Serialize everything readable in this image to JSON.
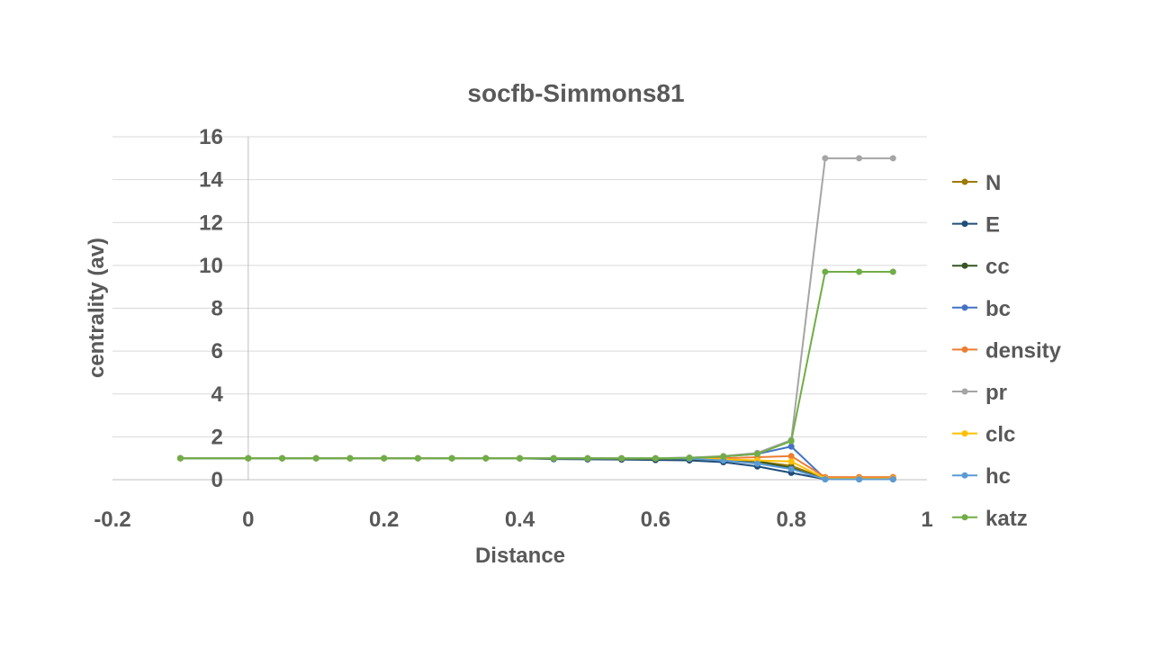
{
  "chart_data": {
    "type": "line",
    "title": "socfb-Simmons81",
    "xlabel": "Distance",
    "ylabel": "centrality (av)",
    "xlim": [
      -0.2,
      1
    ],
    "ylim": [
      0,
      16
    ],
    "xticks": [
      -0.2,
      0,
      0.2,
      0.4,
      0.6,
      0.8,
      1
    ],
    "xtick_labels": [
      "-0.2",
      "0",
      "0.2",
      "0.4",
      "0.6",
      "0.8",
      "1"
    ],
    "yticks": [
      0,
      2,
      4,
      6,
      8,
      10,
      12,
      14,
      16
    ],
    "ytick_labels": [
      "0",
      "2",
      "4",
      "6",
      "8",
      "10",
      "12",
      "14",
      "16"
    ],
    "grid": "horizontal",
    "legend_position": "right",
    "x": [
      -0.1,
      0,
      0.05,
      0.1,
      0.15,
      0.2,
      0.25,
      0.3,
      0.35,
      0.4,
      0.45,
      0.5,
      0.55,
      0.6,
      0.65,
      0.7,
      0.75,
      0.8,
      0.85,
      0.9,
      0.95
    ],
    "series": [
      {
        "name": "N",
        "color": "#9c7a00",
        "values": [
          1,
          1,
          1,
          1,
          1,
          1,
          1,
          1,
          1,
          1,
          0.98,
          0.97,
          0.97,
          0.96,
          0.95,
          0.92,
          0.85,
          0.65,
          0.05,
          0.05,
          0.05
        ]
      },
      {
        "name": "E",
        "color": "#1f4e79",
        "values": [
          1,
          1,
          1,
          1,
          1,
          1,
          1,
          1,
          1,
          0.99,
          0.96,
          0.95,
          0.94,
          0.92,
          0.9,
          0.82,
          0.62,
          0.32,
          0.02,
          0.02,
          0.02
        ]
      },
      {
        "name": "cc",
        "color": "#375623",
        "values": [
          1,
          1,
          1,
          1,
          1,
          1,
          1,
          1,
          1,
          1,
          0.99,
          0.99,
          0.98,
          0.97,
          0.96,
          0.93,
          0.85,
          0.55,
          0.03,
          0.03,
          0.03
        ]
      },
      {
        "name": "bc",
        "color": "#4472c4",
        "values": [
          1,
          1,
          1,
          1,
          1,
          1,
          1,
          1,
          1,
          1,
          1,
          1,
          1,
          1,
          1.02,
          1.08,
          1.2,
          1.55,
          0.05,
          0.05,
          0.05
        ]
      },
      {
        "name": "density",
        "color": "#ed7d31",
        "values": [
          1,
          1,
          1,
          1,
          1,
          1,
          1,
          1,
          1,
          1,
          1,
          1,
          1,
          1,
          1,
          1,
          1.05,
          1.1,
          0.12,
          0.12,
          0.12
        ]
      },
      {
        "name": "pr",
        "color": "#a5a5a5",
        "values": [
          1,
          1,
          1,
          1,
          1,
          1,
          1,
          1,
          1,
          1,
          1,
          1,
          1,
          1,
          1.03,
          1.1,
          1.25,
          1.85,
          15,
          15,
          15
        ]
      },
      {
        "name": "clc",
        "color": "#ffc000",
        "values": [
          1,
          1,
          1,
          1,
          1,
          1,
          1,
          1,
          1,
          1,
          1,
          1,
          1,
          1,
          0.99,
          0.95,
          0.9,
          0.85,
          0.05,
          0.05,
          0.05
        ]
      },
      {
        "name": "hc",
        "color": "#5b9bd5",
        "values": [
          1,
          1,
          1,
          1,
          1,
          1,
          1,
          1,
          1,
          1,
          1,
          1,
          1,
          1,
          0.98,
          0.9,
          0.75,
          0.5,
          0.02,
          0.02,
          0.02
        ]
      },
      {
        "name": "katz",
        "color": "#70ad47",
        "values": [
          1,
          1,
          1,
          1,
          1,
          1,
          1,
          1,
          1,
          1,
          1,
          1,
          1,
          1,
          1.02,
          1.08,
          1.2,
          1.8,
          9.7,
          9.7,
          9.7
        ]
      }
    ]
  }
}
